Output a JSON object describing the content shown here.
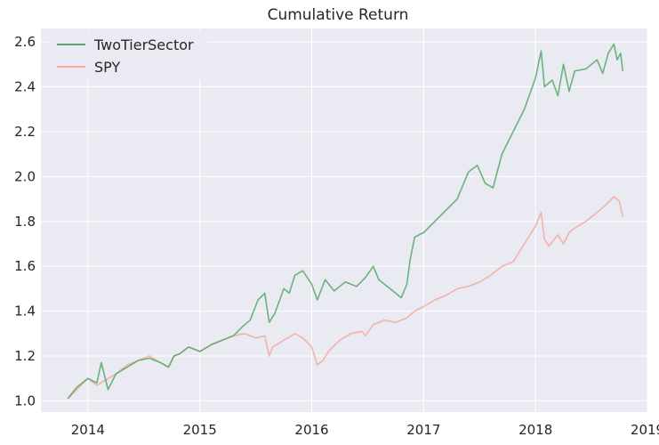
{
  "chart_data": {
    "type": "line",
    "title": "Cumulative Return",
    "xlabel": "",
    "ylabel": "",
    "xlim": [
      2013.58,
      2019.0
    ],
    "ylim": [
      0.95,
      2.66
    ],
    "x_ticks": [
      2014,
      2015,
      2016,
      2017,
      2018,
      2019
    ],
    "x_tick_labels": [
      "2014",
      "2015",
      "2016",
      "2017",
      "2018",
      "2019"
    ],
    "y_ticks": [
      1.0,
      1.2,
      1.4,
      1.6,
      1.8,
      2.0,
      2.2,
      2.4,
      2.6
    ],
    "y_tick_labels": [
      "1.0",
      "1.2",
      "1.4",
      "1.6",
      "1.8",
      "2.0",
      "2.2",
      "2.4",
      "2.6"
    ],
    "grid": true,
    "legend_position": "top-left",
    "background": "#eaeaf2",
    "series": [
      {
        "name": "TwoTierSector",
        "color": "#55a868",
        "x": [
          2013.82,
          2013.9,
          2014.0,
          2014.08,
          2014.12,
          2014.18,
          2014.25,
          2014.35,
          2014.45,
          2014.55,
          2014.65,
          2014.72,
          2014.77,
          2014.82,
          2014.9,
          2015.0,
          2015.1,
          2015.2,
          2015.3,
          2015.38,
          2015.45,
          2015.52,
          2015.58,
          2015.62,
          2015.67,
          2015.75,
          2015.8,
          2015.85,
          2015.92,
          2016.0,
          2016.05,
          2016.12,
          2016.2,
          2016.3,
          2016.4,
          2016.48,
          2016.55,
          2016.6,
          2016.7,
          2016.8,
          2016.85,
          2016.88,
          2016.92,
          2017.0,
          2017.1,
          2017.2,
          2017.3,
          2017.4,
          2017.48,
          2017.55,
          2017.62,
          2017.7,
          2017.75,
          2017.8,
          2017.9,
          2018.0,
          2018.05,
          2018.08,
          2018.15,
          2018.2,
          2018.25,
          2018.3,
          2018.35,
          2018.45,
          2018.55,
          2018.6,
          2018.65,
          2018.7,
          2018.73,
          2018.76,
          2018.78
        ],
        "y": [
          1.01,
          1.06,
          1.1,
          1.08,
          1.17,
          1.05,
          1.12,
          1.15,
          1.18,
          1.19,
          1.17,
          1.15,
          1.2,
          1.21,
          1.24,
          1.22,
          1.25,
          1.27,
          1.29,
          1.33,
          1.36,
          1.45,
          1.48,
          1.35,
          1.39,
          1.5,
          1.48,
          1.56,
          1.58,
          1.52,
          1.45,
          1.54,
          1.49,
          1.53,
          1.51,
          1.55,
          1.6,
          1.54,
          1.5,
          1.46,
          1.52,
          1.63,
          1.73,
          1.75,
          1.8,
          1.85,
          1.9,
          2.02,
          2.05,
          1.97,
          1.95,
          2.1,
          2.15,
          2.2,
          2.3,
          2.44,
          2.56,
          2.4,
          2.43,
          2.36,
          2.5,
          2.38,
          2.47,
          2.48,
          2.52,
          2.46,
          2.55,
          2.59,
          2.52,
          2.55,
          2.47
        ]
      },
      {
        "name": "SPY",
        "color": "#f4a89e",
        "x": [
          2013.82,
          2013.9,
          2014.0,
          2014.08,
          2014.15,
          2014.25,
          2014.35,
          2014.45,
          2014.55,
          2014.65,
          2014.72,
          2014.77,
          2014.82,
          2014.9,
          2015.0,
          2015.1,
          2015.2,
          2015.3,
          2015.4,
          2015.5,
          2015.58,
          2015.62,
          2015.65,
          2015.75,
          2015.85,
          2015.92,
          2016.0,
          2016.05,
          2016.1,
          2016.15,
          2016.25,
          2016.35,
          2016.45,
          2016.48,
          2016.55,
          2016.65,
          2016.75,
          2016.85,
          2016.92,
          2017.0,
          2017.1,
          2017.2,
          2017.3,
          2017.4,
          2017.5,
          2017.6,
          2017.7,
          2017.8,
          2017.9,
          2018.0,
          2018.05,
          2018.08,
          2018.12,
          2018.2,
          2018.25,
          2018.3,
          2018.35,
          2018.45,
          2018.55,
          2018.62,
          2018.7,
          2018.75,
          2018.78
        ],
        "y": [
          1.01,
          1.05,
          1.1,
          1.07,
          1.09,
          1.12,
          1.16,
          1.18,
          1.2,
          1.17,
          1.15,
          1.2,
          1.21,
          1.24,
          1.22,
          1.25,
          1.27,
          1.29,
          1.3,
          1.28,
          1.29,
          1.2,
          1.24,
          1.27,
          1.3,
          1.28,
          1.24,
          1.16,
          1.18,
          1.22,
          1.27,
          1.3,
          1.31,
          1.29,
          1.34,
          1.36,
          1.35,
          1.37,
          1.4,
          1.42,
          1.45,
          1.47,
          1.5,
          1.51,
          1.53,
          1.56,
          1.6,
          1.62,
          1.7,
          1.78,
          1.84,
          1.72,
          1.69,
          1.74,
          1.7,
          1.75,
          1.77,
          1.8,
          1.84,
          1.87,
          1.91,
          1.89,
          1.82
        ]
      }
    ]
  }
}
